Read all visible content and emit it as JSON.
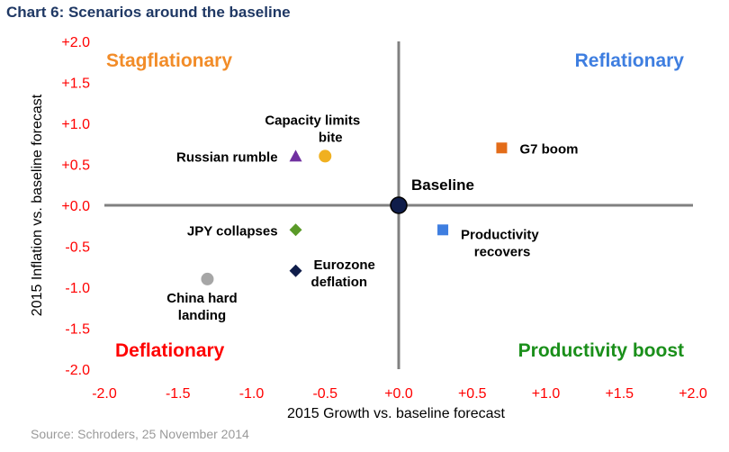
{
  "title": "Chart 6: Scenarios around the baseline",
  "source": "Source: Schroders, 25 November 2014",
  "chart_data": {
    "type": "scatter",
    "title": "Chart 6: Scenarios around the baseline",
    "xlabel": "2015 Growth vs. baseline forecast",
    "ylabel": "2015 Inflation vs. baseline forecast",
    "xlim": [
      -2.0,
      2.0
    ],
    "ylim": [
      -2.0,
      2.0
    ],
    "xticks": [
      "-2.0",
      "-1.5",
      "-1.0",
      "-0.5",
      "+0.0",
      "+0.5",
      "+1.0",
      "+1.5",
      "+2.0"
    ],
    "yticks": [
      "+2.0",
      "+1.5",
      "+1.0",
      "+0.5",
      "+0.0",
      "-0.5",
      "-1.0",
      "-1.5",
      "-2.0"
    ],
    "grid": false,
    "quadrants": [
      {
        "label": "Stagflationary",
        "color": "#f28c28",
        "position": "top-left"
      },
      {
        "label": "Reflationary",
        "color": "#3e7ee0",
        "position": "top-right"
      },
      {
        "label": "Deflationary",
        "color": "#ff0000",
        "position": "bottom-left"
      },
      {
        "label": "Productivity boost",
        "color": "#1a8f1a",
        "position": "bottom-right"
      }
    ],
    "points": [
      {
        "label": [
          "Baseline"
        ],
        "x": 0.0,
        "y": 0.0,
        "marker": "circle",
        "color": "#0f1d4a",
        "labelPos": "above-right"
      },
      {
        "label": [
          "Russian rumble"
        ],
        "x": -0.7,
        "y": 0.6,
        "marker": "triangle",
        "color": "#7030a0",
        "labelPos": "left"
      },
      {
        "label": [
          "Capacity limits",
          "bite"
        ],
        "x": -0.5,
        "y": 0.6,
        "marker": "circle",
        "color": "#f0b020",
        "labelPos": "above"
      },
      {
        "label": [
          "G7 boom"
        ],
        "x": 0.7,
        "y": 0.7,
        "marker": "square",
        "color": "#e36c19",
        "labelPos": "right"
      },
      {
        "label": [
          "JPY collapses"
        ],
        "x": -0.7,
        "y": -0.3,
        "marker": "diamond",
        "color": "#5a9a28",
        "labelPos": "left"
      },
      {
        "label": [
          "Productivity",
          "recovers"
        ],
        "x": 0.3,
        "y": -0.3,
        "marker": "square",
        "color": "#3e7ee0",
        "labelPos": "right-below"
      },
      {
        "label": [
          "Eurozone",
          "deflation"
        ],
        "x": -0.7,
        "y": -0.8,
        "marker": "diamond",
        "color": "#0f1d4a",
        "labelPos": "right-stack"
      },
      {
        "label": [
          "China hard",
          "landing"
        ],
        "x": -1.3,
        "y": -0.9,
        "marker": "circle",
        "color": "#a6a6a6",
        "labelPos": "below"
      }
    ]
  }
}
